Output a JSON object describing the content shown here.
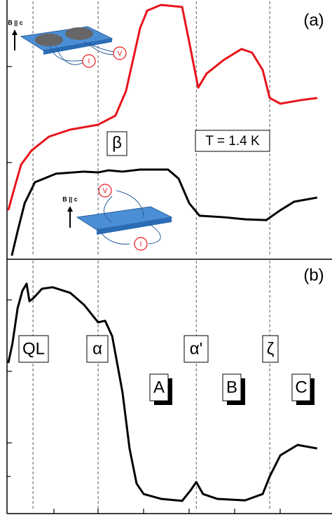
{
  "chart_data": [
    {
      "type": "line",
      "panel_label": "(a)",
      "annotations": {
        "temperature": "T = 1.4 K",
        "beta": "β"
      },
      "insets": [
        {
          "field": "B || c",
          "voltage": "V",
          "current": "I"
        },
        {
          "field": "B || c",
          "voltage": "V",
          "current": "I"
        }
      ],
      "xlim": [
        0,
        100
      ],
      "ylim": [
        0,
        100
      ],
      "vlines": [
        8.1,
        28.4,
        59.0,
        81.9
      ],
      "series": [
        {
          "color": "#e8141b",
          "x": [
            0.4,
            2.2,
            4.4,
            7.6,
            13.1,
            19.7,
            28.4,
            33.8,
            37.1,
            41.5,
            43.7,
            48.0,
            54.6,
            56.8,
            59.6,
            62.2,
            67.7,
            73.1,
            76.4,
            79.7,
            81.9,
            85.2,
            91.7,
            96.7
          ],
          "y": [
            18.9,
            27.0,
            36.5,
            41.9,
            47.3,
            50.0,
            51.9,
            55.4,
            64.9,
            89.2,
            95.9,
            98.1,
            97.3,
            83.8,
            66.2,
            71.6,
            77.0,
            81.1,
            79.7,
            73.0,
            62.2,
            60.0,
            61.4,
            62.2
          ]
        },
        {
          "color": "#000000",
          "x": [
            1.5,
            3.3,
            5.5,
            8.7,
            15.3,
            24.0,
            28.4,
            31.7,
            36.0,
            41.5,
            50.2,
            53.5,
            56.8,
            60.0,
            67.7,
            74.2,
            80.8,
            85.2,
            89.5,
            96.7
          ],
          "y": [
            1.4,
            10.8,
            21.6,
            29.7,
            33.0,
            33.8,
            33.5,
            34.3,
            33.8,
            34.6,
            34.6,
            31.1,
            21.6,
            16.8,
            16.2,
            15.4,
            15.1,
            18.9,
            22.2,
            23.8
          ]
        }
      ]
    },
    {
      "type": "line",
      "panel_label": "(b)",
      "annotations": {
        "ql": "QL",
        "alpha": "α",
        "alpha_prime": "α'",
        "zeta": "ζ",
        "a": "A",
        "b": "B",
        "c": "C"
      },
      "xlim": [
        0,
        100
      ],
      "ylim": [
        0,
        100
      ],
      "vlines": [
        8.1,
        28.4,
        59.0,
        81.9
      ],
      "series": [
        {
          "color": "#000000",
          "x": [
            0.4,
            1.7,
            3.3,
            4.8,
            6.1,
            7.0,
            8.3,
            10.9,
            14.2,
            19.7,
            24.0,
            28.4,
            30.6,
            32.8,
            36.0,
            38.2,
            40.4,
            42.6,
            48.0,
            54.6,
            57.2,
            59.0,
            61.1,
            65.5,
            74.2,
            79.7,
            81.9,
            85.2,
            90.6,
            96.7
          ],
          "y": [
            59.2,
            66.9,
            80.7,
            87.6,
            90.4,
            83.5,
            84.8,
            88.4,
            89.0,
            86.8,
            82.1,
            75.2,
            75.8,
            69.7,
            47.7,
            25.6,
            11.8,
            7.7,
            5.8,
            5.0,
            9.1,
            12.4,
            7.7,
            5.8,
            5.2,
            7.7,
            14.6,
            22.9,
            27.0,
            25.6
          ]
        }
      ]
    }
  ]
}
